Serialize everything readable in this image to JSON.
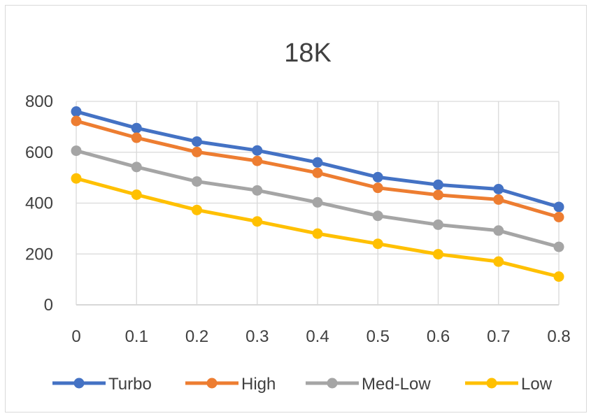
{
  "chart_data": {
    "type": "line",
    "title": "18K",
    "xlabel": "",
    "ylabel": "",
    "x": [
      "0",
      "0.1",
      "0.2",
      "0.3",
      "0.4",
      "0.5",
      "0.6",
      "0.7",
      "0.8"
    ],
    "ylim": [
      0,
      800
    ],
    "yticks": [
      "0",
      "200",
      "400",
      "600",
      "800"
    ],
    "grid": true,
    "legend_position": "bottom",
    "series": [
      {
        "name": "Turbo",
        "color": "#4472c4",
        "values": [
          760,
          695,
          642,
          607,
          560,
          502,
          472,
          455,
          385
        ]
      },
      {
        "name": "High",
        "color": "#ed7d31",
        "values": [
          723,
          657,
          601,
          566,
          519,
          460,
          432,
          414,
          345
        ]
      },
      {
        "name": "Med-Low",
        "color": "#a5a5a5",
        "values": [
          606,
          542,
          485,
          450,
          403,
          350,
          315,
          292,
          228
        ]
      },
      {
        "name": "Low",
        "color": "#ffc000",
        "values": [
          497,
          433,
          373,
          328,
          280,
          240,
          199,
          170,
          111
        ]
      }
    ]
  }
}
